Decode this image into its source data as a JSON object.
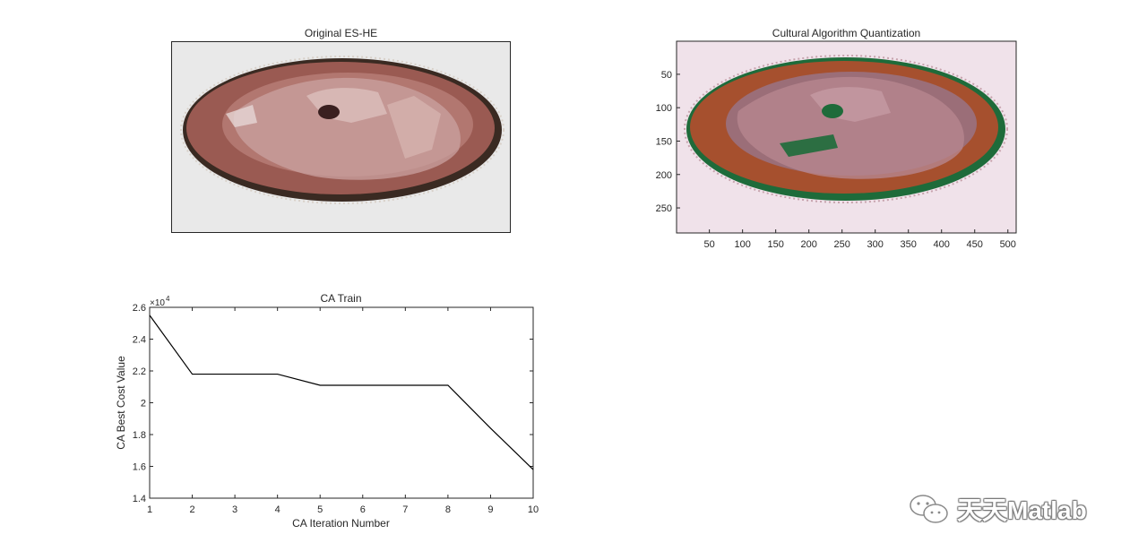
{
  "panels": {
    "original": {
      "title": "Original ES-HE"
    },
    "quantized": {
      "title": "Cultural Algorithm Quantization",
      "xticks": [
        50,
        100,
        150,
        200,
        250,
        300,
        350,
        400,
        450,
        500
      ],
      "yticks": [
        50,
        100,
        150,
        200,
        250
      ],
      "xlim": [
        0.5,
        512.5
      ],
      "ylim": [
        0.5,
        287.5
      ]
    }
  },
  "chart_data": {
    "type": "line",
    "title": "CA Train",
    "xlabel": "CA Iteration Number",
    "ylabel": "CA Best Cost Value",
    "exponent_label": "×10",
    "exponent_power": "4",
    "x": [
      1,
      2,
      3,
      4,
      5,
      6,
      7,
      8,
      9,
      10
    ],
    "y": [
      2.55,
      2.18,
      2.18,
      2.18,
      2.11,
      2.11,
      2.11,
      2.11,
      1.84,
      1.58
    ],
    "xlim": [
      1,
      10
    ],
    "ylim": [
      1.4,
      2.6
    ],
    "xticks": [
      "1",
      "2",
      "3",
      "4",
      "5",
      "6",
      "7",
      "8",
      "9",
      "10"
    ],
    "yticks": [
      "1.4",
      "1.6",
      "1.8",
      "2",
      "2.2",
      "2.4",
      "2.6"
    ],
    "line_color": "#000000",
    "grid": false
  },
  "watermark": {
    "text": "天天Matlab"
  }
}
